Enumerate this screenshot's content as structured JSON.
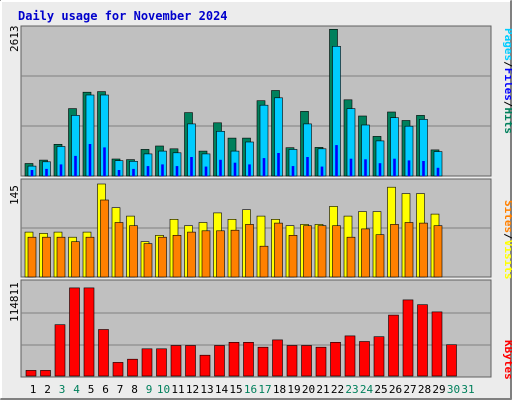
{
  "title": "Daily usage for November 2024",
  "colors": {
    "frame": "#ececec",
    "plot_bg": "#c0c0c0",
    "grid": "#808080",
    "title": "#0000cc",
    "hits": "#00805c",
    "files": "#00ccff",
    "pages": "#0000ff",
    "visits": "#ffff00",
    "sites": "#ff8000",
    "kbytes": "#ff0000",
    "weekend_label": "#00805c",
    "weekday_label": "#000000"
  },
  "chart_data": [
    {
      "type": "bar",
      "panel": "hits-files-pages",
      "ymax_label": "2613",
      "ylim": [
        0,
        2613
      ],
      "legend": [
        "Pages",
        "/",
        "Files",
        "/",
        "Hits"
      ],
      "categories": [
        "1",
        "2",
        "3",
        "4",
        "5",
        "6",
        "7",
        "8",
        "9",
        "10",
        "11",
        "12",
        "13",
        "14",
        "15",
        "16",
        "17",
        "18",
        "19",
        "20",
        "21",
        "22",
        "23",
        "24",
        "25",
        "26",
        "27",
        "28",
        "29",
        "30",
        "31"
      ],
      "series": [
        {
          "name": "Hits",
          "values": [
            220,
            280,
            560,
            1190,
            1480,
            1490,
            300,
            290,
            470,
            530,
            480,
            1120,
            440,
            940,
            670,
            670,
            1330,
            1510,
            500,
            1140,
            505,
            2590,
            1345,
            1060,
            700,
            1130,
            980,
            1070,
            460,
            null,
            null
          ]
        },
        {
          "name": "Files",
          "values": [
            175,
            250,
            520,
            1070,
            1430,
            1430,
            270,
            260,
            390,
            440,
            410,
            920,
            390,
            790,
            440,
            600,
            1250,
            1380,
            470,
            920,
            480,
            2290,
            1190,
            900,
            620,
            1030,
            880,
            1000,
            430,
            null,
            null
          ]
        },
        {
          "name": "Pages",
          "values": [
            100,
            120,
            200,
            350,
            560,
            500,
            100,
            120,
            170,
            200,
            170,
            330,
            160,
            280,
            230,
            200,
            310,
            400,
            170,
            330,
            160,
            540,
            300,
            290,
            220,
            300,
            270,
            260,
            140,
            null,
            null
          ]
        }
      ]
    },
    {
      "type": "bar",
      "panel": "visits-sites",
      "ymax_label": "145",
      "ylim": [
        0,
        145
      ],
      "legend": [
        "Sites",
        "/",
        "Visits"
      ],
      "categories": [
        "1",
        "2",
        "3",
        "4",
        "5",
        "6",
        "7",
        "8",
        "9",
        "10",
        "11",
        "12",
        "13",
        "14",
        "15",
        "16",
        "17",
        "18",
        "19",
        "20",
        "21",
        "22",
        "23",
        "24",
        "25",
        "26",
        "27",
        "28",
        "29",
        "30",
        "31"
      ],
      "series": [
        {
          "name": "Visits",
          "values": [
            70,
            68,
            70,
            62,
            70,
            145,
            108,
            95,
            55,
            65,
            90,
            80,
            85,
            100,
            90,
            105,
            95,
            90,
            80,
            82,
            82,
            110,
            95,
            102,
            102,
            140,
            130,
            130,
            98,
            null,
            null
          ]
        },
        {
          "name": "Sites",
          "values": [
            62,
            62,
            62,
            55,
            62,
            120,
            85,
            80,
            52,
            62,
            65,
            70,
            72,
            72,
            73,
            82,
            48,
            84,
            65,
            80,
            80,
            80,
            62,
            75,
            66,
            82,
            85,
            84,
            80,
            null,
            null
          ]
        }
      ]
    },
    {
      "type": "bar",
      "panel": "kbytes",
      "ymax_label": "114811",
      "ylim": [
        0,
        114811
      ],
      "legend": [
        "KBytes"
      ],
      "categories": [
        "1",
        "2",
        "3",
        "4",
        "5",
        "6",
        "7",
        "8",
        "9",
        "10",
        "11",
        "12",
        "13",
        "14",
        "15",
        "16",
        "17",
        "18",
        "19",
        "20",
        "21",
        "22",
        "23",
        "24",
        "25",
        "26",
        "27",
        "28",
        "29",
        "30",
        "31"
      ],
      "series": [
        {
          "name": "KBytes",
          "values": [
            7000,
            7000,
            64000,
            110000,
            110000,
            58000,
            17000,
            21000,
            34000,
            34000,
            38000,
            38000,
            26000,
            38000,
            42000,
            42000,
            36000,
            45000,
            38000,
            38000,
            36000,
            42000,
            50000,
            43000,
            49000,
            76000,
            95000,
            89000,
            80000,
            39000,
            null
          ]
        }
      ]
    }
  ],
  "x_axis": {
    "labels": [
      "1",
      "2",
      "3",
      "4",
      "5",
      "6",
      "7",
      "8",
      "9",
      "10",
      "11",
      "12",
      "13",
      "14",
      "15",
      "16",
      "17",
      "18",
      "19",
      "20",
      "21",
      "22",
      "23",
      "24",
      "25",
      "26",
      "27",
      "28",
      "29",
      "30",
      "31"
    ],
    "weekend": [
      false,
      false,
      true,
      true,
      false,
      false,
      false,
      false,
      true,
      true,
      false,
      false,
      false,
      false,
      false,
      true,
      true,
      false,
      false,
      false,
      false,
      false,
      true,
      true,
      false,
      false,
      false,
      false,
      false,
      true,
      true
    ]
  }
}
